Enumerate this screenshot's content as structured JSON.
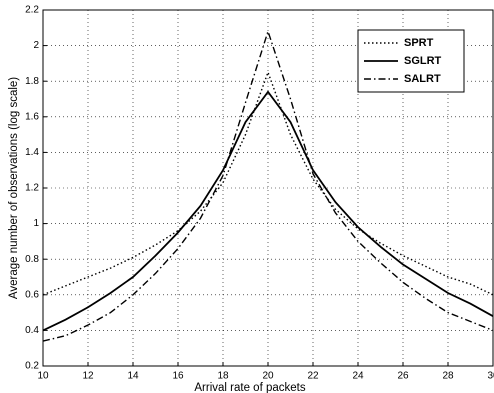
{
  "chart_data": {
    "type": "line",
    "xlabel": "Arrival rate of packets",
    "ylabel": "Average number of observations (log scale)",
    "x": [
      10,
      11,
      12,
      13,
      14,
      15,
      16,
      17,
      18,
      19,
      20,
      21,
      22,
      23,
      24,
      25,
      26,
      27,
      28,
      29,
      30
    ],
    "series": [
      {
        "name": "SPRT",
        "color": "#000000",
        "linestyle": "dotted",
        "values": [
          0.6,
          0.65,
          0.7,
          0.75,
          0.81,
          0.88,
          0.96,
          1.07,
          1.23,
          1.5,
          1.85,
          1.5,
          1.25,
          1.08,
          0.97,
          0.89,
          0.82,
          0.76,
          0.7,
          0.66,
          0.6
        ]
      },
      {
        "name": "SGLRT",
        "color": "#000000",
        "linestyle": "solid",
        "values": [
          0.4,
          0.46,
          0.53,
          0.61,
          0.7,
          0.82,
          0.95,
          1.1,
          1.3,
          1.57,
          1.74,
          1.57,
          1.3,
          1.12,
          0.98,
          0.87,
          0.77,
          0.69,
          0.61,
          0.55,
          0.48
        ]
      },
      {
        "name": "SALRT",
        "color": "#000000",
        "linestyle": "dashdot",
        "values": [
          0.34,
          0.37,
          0.43,
          0.5,
          0.6,
          0.72,
          0.86,
          1.03,
          1.27,
          1.68,
          2.08,
          1.7,
          1.28,
          1.06,
          0.9,
          0.78,
          0.67,
          0.58,
          0.5,
          0.45,
          0.4
        ]
      }
    ],
    "xlim": [
      10,
      30
    ],
    "xticks": [
      10,
      12,
      14,
      16,
      18,
      20,
      22,
      24,
      26,
      28,
      30
    ],
    "ylim": [
      0.2,
      2.2
    ],
    "yticks": [
      0.2,
      0.4,
      0.6,
      0.8,
      1,
      1.2,
      1.4,
      1.6,
      1.8,
      2,
      2.2
    ],
    "grid": true,
    "legend": "upper right"
  }
}
